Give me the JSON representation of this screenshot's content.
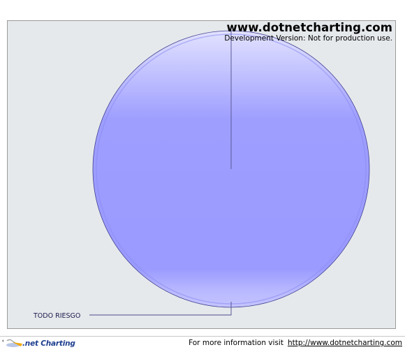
{
  "watermark": {
    "url": "www.dotnetcharting.com",
    "note": "Development Version: Not for production use."
  },
  "chart_data": {
    "type": "pie",
    "title": "",
    "slices": [
      {
        "label": "TODO RIESGO",
        "value": 100,
        "color": "#9c9cff"
      }
    ],
    "legend": "none",
    "label_placement": "bottom-left with leader line"
  },
  "footer": {
    "brand": ".net Charting",
    "info_text": "For more information visit",
    "link_text": "http://www.dotnetcharting.com"
  }
}
